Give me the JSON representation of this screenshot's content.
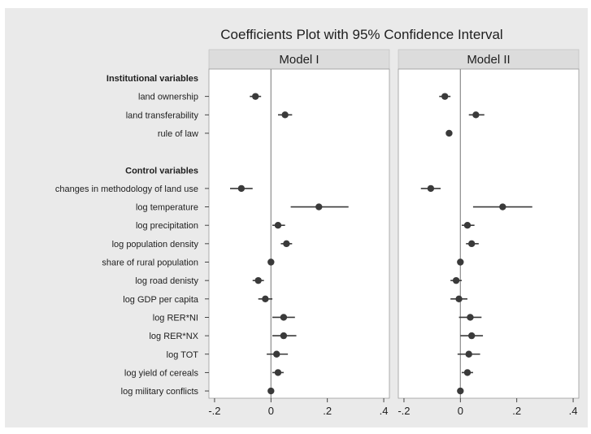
{
  "chart_data": {
    "type": "scatter",
    "title": "Coefficients Plot with 95% Confidence Interval",
    "xlim": [
      -0.22,
      0.42
    ],
    "x_ticks": [
      -0.2,
      0,
      0.2,
      0.4
    ],
    "x_tick_labels": [
      "-.2",
      "0",
      ".2",
      ".4"
    ],
    "zero_line": true,
    "colors": {
      "background": "#eaeaea",
      "plot": "#ffffff",
      "strip": "#dcdcdc",
      "marker": "#3a3a3a",
      "zero_line": "#8c8c8c"
    },
    "rows": [
      {
        "label": "Institutional variables",
        "group": true
      },
      {
        "label": "land ownership"
      },
      {
        "label": "land transferability"
      },
      {
        "label": "rule of law"
      },
      {
        "label": "",
        "spacer": true
      },
      {
        "label": "Control variables",
        "group": true
      },
      {
        "label": "changes in methodology of land use"
      },
      {
        "label": "log temperature"
      },
      {
        "label": "log precipitation"
      },
      {
        "label": "log population density"
      },
      {
        "label": "share of rural population"
      },
      {
        "label": "log road denisty"
      },
      {
        "label": "log GDP per capita"
      },
      {
        "label": "log RER*NI"
      },
      {
        "label": "log RER*NX"
      },
      {
        "label": "log TOT"
      },
      {
        "label": "log yield of cereals"
      },
      {
        "label": "log military conflicts"
      }
    ],
    "panels": [
      {
        "name": "Model I",
        "estimates": [
          null,
          {
            "coef": -0.055,
            "lo": -0.075,
            "hi": -0.035
          },
          {
            "coef": 0.05,
            "lo": 0.025,
            "hi": 0.075
          },
          null,
          null,
          null,
          {
            "coef": -0.105,
            "lo": -0.145,
            "hi": -0.065
          },
          {
            "coef": 0.17,
            "lo": 0.07,
            "hi": 0.275
          },
          {
            "coef": 0.025,
            "lo": 0.005,
            "hi": 0.05
          },
          {
            "coef": 0.055,
            "lo": 0.035,
            "hi": 0.075
          },
          {
            "coef": 0.0,
            "lo": -0.003,
            "hi": 0.003
          },
          {
            "coef": -0.045,
            "lo": -0.065,
            "hi": -0.025
          },
          {
            "coef": -0.02,
            "lo": -0.045,
            "hi": 0.005
          },
          {
            "coef": 0.045,
            "lo": 0.005,
            "hi": 0.085
          },
          {
            "coef": 0.045,
            "lo": 0.005,
            "hi": 0.09
          },
          {
            "coef": 0.02,
            "lo": -0.015,
            "hi": 0.06
          },
          {
            "coef": 0.025,
            "lo": 0.005,
            "hi": 0.045
          },
          {
            "coef": 0.0,
            "lo": -0.003,
            "hi": 0.003
          }
        ]
      },
      {
        "name": "Model II",
        "estimates": [
          null,
          {
            "coef": -0.055,
            "lo": -0.075,
            "hi": -0.035
          },
          {
            "coef": 0.055,
            "lo": 0.03,
            "hi": 0.085
          },
          {
            "coef": -0.04,
            "lo": -0.05,
            "hi": -0.03
          },
          null,
          null,
          {
            "coef": -0.105,
            "lo": -0.14,
            "hi": -0.07
          },
          {
            "coef": 0.15,
            "lo": 0.045,
            "hi": 0.255
          },
          {
            "coef": 0.025,
            "lo": 0.005,
            "hi": 0.05
          },
          {
            "coef": 0.04,
            "lo": 0.02,
            "hi": 0.065
          },
          {
            "coef": 0.0,
            "lo": -0.003,
            "hi": 0.003
          },
          {
            "coef": -0.015,
            "lo": -0.035,
            "hi": 0.005
          },
          {
            "coef": -0.005,
            "lo": -0.035,
            "hi": 0.025
          },
          {
            "coef": 0.035,
            "lo": -0.005,
            "hi": 0.075
          },
          {
            "coef": 0.04,
            "lo": 0.0,
            "hi": 0.08
          },
          {
            "coef": 0.03,
            "lo": -0.01,
            "hi": 0.07
          },
          {
            "coef": 0.025,
            "lo": 0.005,
            "hi": 0.045
          },
          {
            "coef": 0.0,
            "lo": -0.003,
            "hi": 0.003
          }
        ]
      }
    ]
  }
}
